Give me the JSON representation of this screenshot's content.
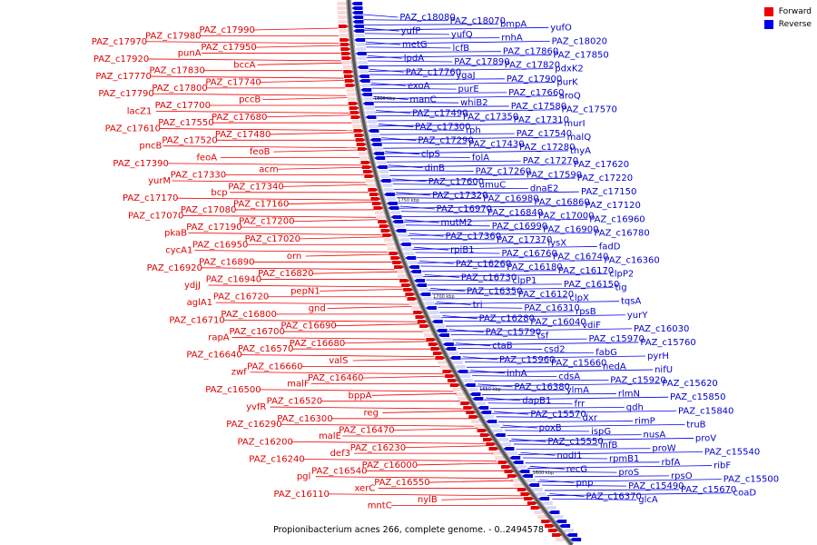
{
  "caption": "Propionibacterium acnes 266, complete genome. - 0..2494578",
  "legend": [
    {
      "label": "Forward",
      "color": "#ee0000"
    },
    {
      "label": "Reverse",
      "color": "#0000ee"
    }
  ],
  "scale_labels": [
    "1800 kbp",
    "1750 kbp",
    "1700 kbp",
    "1650 kbp",
    "1600 kbp"
  ],
  "forward_labels": [
    "PAZ_c17990",
    "PAZ_c17980",
    "PAZ_c17970",
    "PAZ_c17950",
    "punA",
    "PAZ_c17920",
    "bccA",
    "PAZ_c17830",
    "PAZ_c17770",
    "PAZ_c17740",
    "PAZ_c17800",
    "PAZ_c17790",
    "pccB",
    "PAZ_c17700",
    "lacZ1",
    "PAZ_c17680",
    "PAZ_c17550",
    "PAZ_c17610",
    "PAZ_c17480",
    "PAZ_c17520",
    "pncB",
    "feoB",
    "feoA",
    "PAZ_c17390",
    "acm",
    "PAZ_c17330",
    "yurM",
    "PAZ_c17340",
    "bcp",
    "PAZ_c17170",
    "PAZ_c17160",
    "PAZ_c17080",
    "PAZ_c17070",
    "PAZ_c17200",
    "PAZ_c17190",
    "pkaB",
    "PAZ_c17020",
    "PAZ_c16950",
    "cycA1",
    "orn",
    "PAZ_c16890",
    "PAZ_c16920",
    "PAZ_c16820",
    "PAZ_c16940",
    "ydjJ",
    "pepN1",
    "PAZ_c16720",
    "aglA1",
    "gnd",
    "PAZ_c16800",
    "PAZ_c16710",
    "PAZ_c16690",
    "PAZ_c16700",
    "rapA",
    "PAZ_c16680",
    "PAZ_c16570",
    "PAZ_c16640",
    "valS",
    "PAZ_c16660",
    "zwf",
    "PAZ_c16460",
    "malF",
    "PAZ_c16500",
    "bppA",
    "PAZ_c16520",
    "yvfR",
    "reg",
    "PAZ_c16300",
    "PAZ_c16290",
    "PAZ_c16470",
    "malE",
    "PAZ_c16200",
    "PAZ_c16230",
    "def3",
    "PAZ_c16240",
    "PAZ_c16000",
    "PAZ_c16540",
    "pgl",
    "PAZ_c16550",
    "xerC",
    "PAZ_c16110",
    "nylB",
    "mntC"
  ],
  "reverse_labels": [
    "PAZ_c18080",
    "PAZ_c18070",
    "bmpA",
    "yufO",
    "yufP",
    "yufQ",
    "rnhA",
    "PAZ_c18020",
    "metG",
    "lcfB",
    "PAZ_c17860",
    "PAZ_c17850",
    "lpdA",
    "PAZ_c17890",
    "PAZ_c17820",
    "pdxK2",
    "PAZ_c17760",
    "ygaJ",
    "PAZ_c17900",
    "purK",
    "exoA",
    "purE",
    "PAZ_c17660",
    "aroQ",
    "manC",
    "whiB2",
    "PAZ_c17580",
    "PAZ_c17570",
    "PAZ_c17490",
    "PAZ_c17350",
    "PAZ_c17310",
    "murI",
    "PAZ_c17300",
    "rph",
    "PAZ_c17540",
    "malQ",
    "PAZ_c17290",
    "PAZ_c17430",
    "PAZ_c17280",
    "thyA",
    "clpS",
    "folA",
    "PAZ_c17270",
    "PAZ_c17620",
    "dinB",
    "PAZ_c17260",
    "PAZ_c17590",
    "PAZ_c17220",
    "PAZ_c17600",
    "umuC",
    "dnaE2",
    "PAZ_c17150",
    "PAZ_c17320",
    "PAZ_c16980",
    "PAZ_c16860",
    "PAZ_c17120",
    "PAZ_c16970",
    "PAZ_c16840",
    "PAZ_c17000",
    "PAZ_c16960",
    "mutM2",
    "PAZ_c16990",
    "PAZ_c16900",
    "PAZ_c16780",
    "PAZ_c17360",
    "PAZ_c17370",
    "lysX",
    "fadD",
    "rpiB1",
    "PAZ_c16760",
    "PAZ_c16740",
    "PAZ_c16360",
    "PAZ_c16260",
    "PAZ_c16180",
    "PAZ_c16170",
    "clpP2",
    "PAZ_c16730",
    "clpP1",
    "PAZ_c16150",
    "tig",
    "PAZ_c16350",
    "PAZ_c16120",
    "clpX",
    "tqsA",
    "tri",
    "PAZ_c16310",
    "rpsB",
    "yurY",
    "PAZ_c16280",
    "PAZ_c16040",
    "vdiF",
    "PAZ_c16030",
    "PAZ_c15790",
    "tsf",
    "PAZ_c15970",
    "PAZ_c15760",
    "ctaB",
    "csd2",
    "fabG",
    "pyrH",
    "PAZ_c15960",
    "PAZ_c15660",
    "nedA",
    "nifU",
    "inhA",
    "cdsA",
    "PAZ_c15920",
    "PAZ_c15620",
    "PAZ_c16380",
    "ylmA",
    "rlmN",
    "PAZ_c15850",
    "dapB1",
    "frr",
    "gdh",
    "PAZ_c15840",
    "PAZ_c15570",
    "dxr",
    "rimP",
    "truB",
    "poxB",
    "ispG",
    "nusA",
    "proV",
    "PAZ_c15550",
    "infB",
    "proW",
    "PAZ_c15540",
    "nodI1",
    "rpmB1",
    "rbfA",
    "ribF",
    "recG",
    "proS",
    "rpsO",
    "PAZ_c15500",
    "pnp",
    "PAZ_c15490",
    "PAZ_c15670",
    "coaD",
    "PAZ_c16370",
    "glcA"
  ]
}
